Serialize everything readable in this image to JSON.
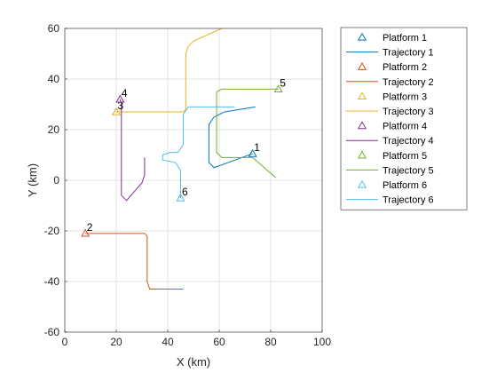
{
  "chart_data": {
    "type": "line",
    "xlabel": "X (km)",
    "ylabel": "Y (km)",
    "xlim": [
      0,
      100
    ],
    "ylim": [
      -60,
      60
    ],
    "xticks": [
      0,
      20,
      40,
      60,
      80,
      100
    ],
    "yticks": [
      -60,
      -40,
      -20,
      0,
      20,
      40,
      60
    ],
    "grid": true,
    "legend_position": "outside-top-right",
    "platforms": [
      {
        "name": "Platform 1",
        "label": "1",
        "x": 73,
        "y": 10.5,
        "color": "#0072BD"
      },
      {
        "name": "Platform 2",
        "label": "2",
        "x": 8,
        "y": -21,
        "color": "#D95319"
      },
      {
        "name": "Platform 3",
        "label": "3",
        "x": 20,
        "y": 27,
        "color": "#EDB120"
      },
      {
        "name": "Platform 4",
        "label": "4",
        "x": 21.5,
        "y": 32,
        "color": "#7E2F8E"
      },
      {
        "name": "Platform 5",
        "label": "5",
        "x": 83,
        "y": 36,
        "color": "#77AC30"
      },
      {
        "name": "Platform 6",
        "label": "6",
        "x": 45,
        "y": -7,
        "color": "#4DBEEE"
      }
    ],
    "series": [
      {
        "name": "Trajectory 1",
        "color": "#0072BD",
        "x": [
          73,
          58,
          56,
          56,
          58,
          62,
          74
        ],
        "y": [
          10.5,
          5,
          7,
          22,
          25,
          27,
          29
        ]
      },
      {
        "name": "Trajectory 2",
        "color": "#D95319",
        "x": [
          8,
          31,
          32,
          32,
          33,
          46
        ],
        "y": [
          -21,
          -21,
          -22,
          -40,
          -43,
          -43
        ]
      },
      {
        "name": "Trajectory 3",
        "color": "#EDB120",
        "x": [
          20,
          21,
          46,
          47,
          47,
          48,
          50,
          61
        ],
        "y": [
          27,
          27,
          27,
          28,
          50,
          53,
          55,
          60
        ]
      },
      {
        "name": "Trajectory 4",
        "color": "#7E2F8E",
        "x": [
          21.5,
          22,
          22,
          24,
          30,
          31,
          31
        ],
        "y": [
          32,
          30,
          -6,
          -8,
          -1,
          2,
          9
        ]
      },
      {
        "name": "Trajectory 5",
        "color": "#77AC30",
        "x": [
          83,
          61,
          59,
          59,
          61,
          73,
          82
        ],
        "y": [
          36,
          36,
          35,
          11,
          9,
          9,
          1
        ]
      },
      {
        "name": "Trajectory 6",
        "color": "#4DBEEE",
        "x": [
          45,
          45,
          43,
          38,
          38,
          41,
          44,
          46,
          46,
          48,
          66
        ],
        "y": [
          -7,
          4,
          7,
          8,
          10,
          11,
          11,
          14,
          26,
          29,
          29
        ]
      }
    ]
  }
}
